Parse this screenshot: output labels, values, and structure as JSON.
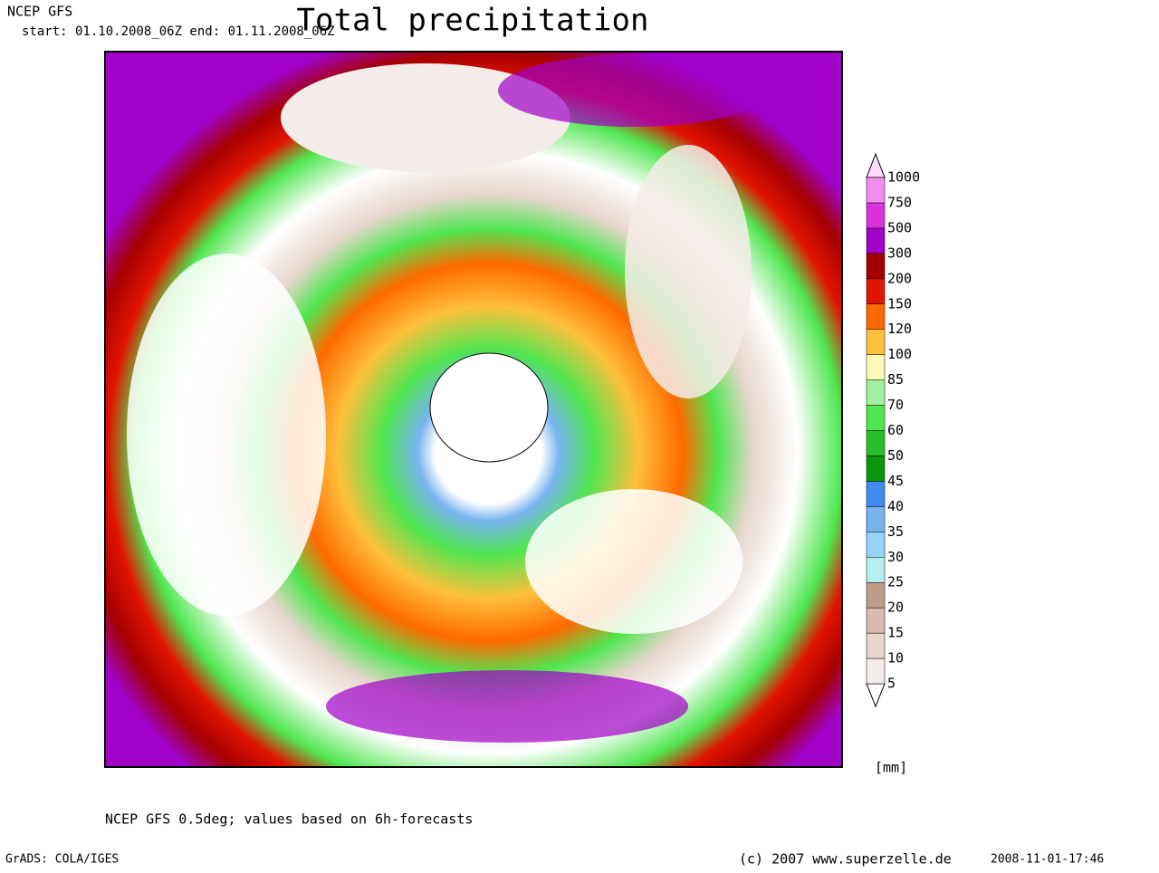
{
  "header": {
    "title": "Total precipitation",
    "source": "NCEP GFS",
    "period": "start: 01.10.2008_06Z  end: 01.11.2008_06Z"
  },
  "colorbar": {
    "levels": [
      5,
      10,
      15,
      20,
      25,
      30,
      35,
      40,
      45,
      50,
      60,
      70,
      85,
      100,
      120,
      150,
      200,
      300,
      500,
      750,
      1000
    ],
    "colors": [
      "#ffffff",
      "#f4ece8",
      "#e6d6cc",
      "#d6bcae",
      "#be9c8c",
      "#b4f0f0",
      "#96d2fa",
      "#78b4f0",
      "#3c8cf0",
      "#0a960a",
      "#28be28",
      "#50e650",
      "#a0f0a0",
      "#fffab4",
      "#ffc03c",
      "#ff6a00",
      "#e11400",
      "#a50000",
      "#a000c8",
      "#dc32dc",
      "#f08cf0",
      "#ffdcff"
    ],
    "unit": "[mm]"
  },
  "footer": {
    "note": "NCEP GFS 0.5deg; values based on 6h-forecasts",
    "software": "GrADS: COLA/IGES",
    "copyright": "(c) 2007 www.superzelle.de",
    "timestamp": "2008-11-01-17:46"
  }
}
